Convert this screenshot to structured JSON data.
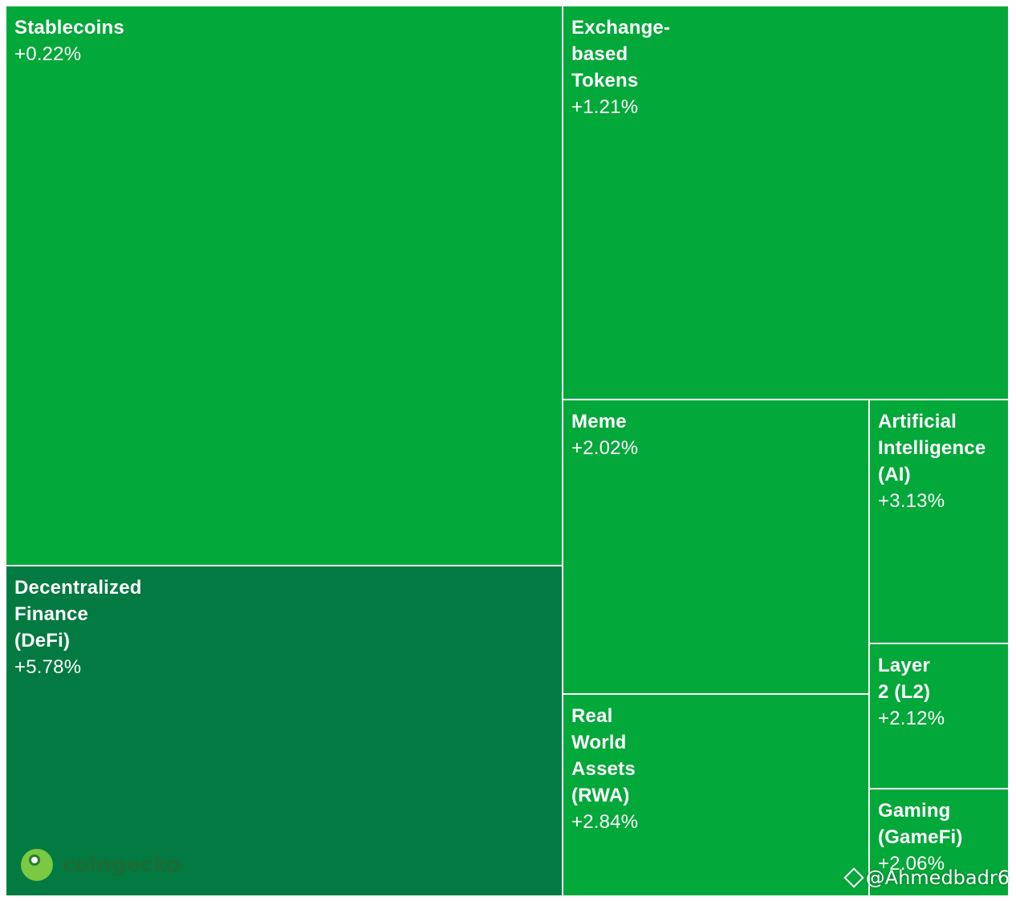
{
  "chart_data": {
    "type": "heatmap",
    "colors": {
      "normal": "#03a83a",
      "highlight": "#027a41"
    },
    "items": [
      {
        "id": "stablecoins",
        "label": "Stablecoins",
        "change": "+0.22%",
        "color": "normal"
      },
      {
        "id": "exchange",
        "label": "Exchange-\nbased\nTokens",
        "change": "+1.21%",
        "color": "normal"
      },
      {
        "id": "meme",
        "label": "Meme",
        "change": "+2.02%",
        "color": "normal"
      },
      {
        "id": "ai",
        "label": "Artificial\nIntelligence\n(AI)",
        "change": "+3.13%",
        "color": "normal"
      },
      {
        "id": "l2",
        "label": "Layer\n2 (L2)",
        "change": "+2.12%",
        "color": "normal"
      },
      {
        "id": "rwa",
        "label": "Real\nWorld\nAssets\n(RWA)",
        "change": "+2.84%",
        "color": "normal"
      },
      {
        "id": "gaming",
        "label": "Gaming\n(GameFi)",
        "change": "+2.06%",
        "color": "normal"
      },
      {
        "id": "defi",
        "label": "Decentralized\nFinance\n(DeFi)",
        "change": "+5.78%",
        "color": "highlight"
      }
    ]
  },
  "branding": {
    "logo_text": "coingecko",
    "watermark": "@Ahmedbadr6"
  }
}
